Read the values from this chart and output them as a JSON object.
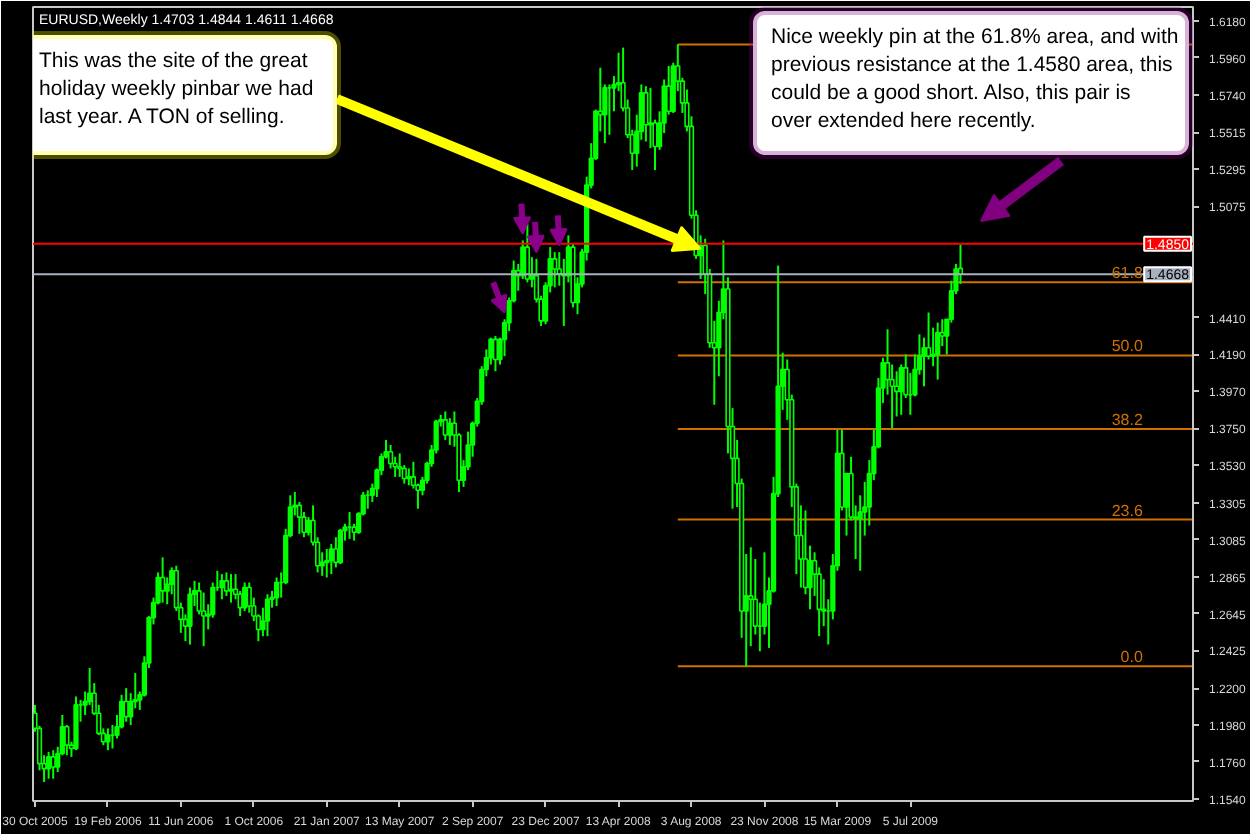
{
  "chart_data": {
    "type": "candlestick",
    "title": "EURUSD,Weekly  1.4703 1.4844 1.4611 1.4668",
    "color": "#00ff00",
    "x": [
      "2005-10-30",
      "2005-11-06",
      "2005-11-13",
      "2005-11-20",
      "2005-11-27",
      "2005-12-04",
      "2005-12-11",
      "2005-12-18",
      "2005-12-25",
      "2006-01-01",
      "2006-01-08",
      "2006-01-15",
      "2006-01-22",
      "2006-01-29",
      "2006-02-05",
      "2006-02-12",
      "2006-02-19",
      "2006-02-26",
      "2006-03-05",
      "2006-03-12",
      "2006-03-19",
      "2006-03-26",
      "2006-04-02",
      "2006-04-09",
      "2006-04-16",
      "2006-04-23",
      "2006-04-30",
      "2006-05-07",
      "2006-05-14",
      "2006-05-21",
      "2006-05-28",
      "2006-06-04",
      "2006-06-11",
      "2006-06-18",
      "2006-06-25",
      "2006-07-02",
      "2006-07-09",
      "2006-07-16",
      "2006-07-23",
      "2006-07-30",
      "2006-08-06",
      "2006-08-13",
      "2006-08-20",
      "2006-08-27",
      "2006-09-03",
      "2006-09-10",
      "2006-09-17",
      "2006-09-24",
      "2006-10-01",
      "2006-10-08",
      "2006-10-15",
      "2006-10-22",
      "2006-10-29",
      "2006-11-05",
      "2006-11-12",
      "2006-11-19",
      "2006-11-26",
      "2006-12-03",
      "2006-12-10",
      "2006-12-17",
      "2006-12-24",
      "2006-12-31",
      "2007-01-07",
      "2007-01-14",
      "2007-01-21",
      "2007-01-28",
      "2007-02-04",
      "2007-02-11",
      "2007-02-18",
      "2007-02-25",
      "2007-03-04",
      "2007-03-11",
      "2007-03-18",
      "2007-03-25",
      "2007-04-01",
      "2007-04-08",
      "2007-04-15",
      "2007-04-22",
      "2007-04-29",
      "2007-05-06",
      "2007-05-13",
      "2007-05-20",
      "2007-05-27",
      "2007-06-03",
      "2007-06-10",
      "2007-06-17",
      "2007-06-24",
      "2007-07-01",
      "2007-07-08",
      "2007-07-15",
      "2007-07-22",
      "2007-07-29",
      "2007-08-05",
      "2007-08-12",
      "2007-08-19",
      "2007-08-26",
      "2007-09-02",
      "2007-09-09",
      "2007-09-16",
      "2007-09-23",
      "2007-09-30",
      "2007-10-07",
      "2007-10-14",
      "2007-10-21",
      "2007-10-28",
      "2007-11-04",
      "2007-11-11",
      "2007-11-18",
      "2007-11-25",
      "2007-12-02",
      "2007-12-09",
      "2007-12-16",
      "2007-12-23",
      "2007-12-30",
      "2008-01-06",
      "2008-01-13",
      "2008-01-20",
      "2008-01-27",
      "2008-02-03",
      "2008-02-10",
      "2008-02-17",
      "2008-02-24",
      "2008-03-02",
      "2008-03-09",
      "2008-03-16",
      "2008-03-23",
      "2008-03-30",
      "2008-04-06",
      "2008-04-13",
      "2008-04-20",
      "2008-04-27",
      "2008-05-04",
      "2008-05-11",
      "2008-05-18",
      "2008-05-25",
      "2008-06-01",
      "2008-06-08",
      "2008-06-15",
      "2008-06-22",
      "2008-06-29",
      "2008-07-06",
      "2008-07-13",
      "2008-07-20",
      "2008-07-27",
      "2008-08-03",
      "2008-08-10",
      "2008-08-17",
      "2008-08-24",
      "2008-08-31",
      "2008-09-07",
      "2008-09-14",
      "2008-09-21",
      "2008-09-28",
      "2008-10-05",
      "2008-10-12",
      "2008-10-19",
      "2008-10-26",
      "2008-11-02",
      "2008-11-09",
      "2008-11-16",
      "2008-11-23",
      "2008-11-30",
      "2008-12-07",
      "2008-12-14",
      "2008-12-21",
      "2008-12-28",
      "2009-01-04",
      "2009-01-11",
      "2009-01-18",
      "2009-01-25",
      "2009-02-01",
      "2009-02-08",
      "2009-02-15",
      "2009-02-22",
      "2009-03-01",
      "2009-03-08",
      "2009-03-15",
      "2009-03-22",
      "2009-03-29",
      "2009-04-05",
      "2009-04-12",
      "2009-04-19",
      "2009-04-26",
      "2009-05-03",
      "2009-05-10",
      "2009-05-17",
      "2009-05-24",
      "2009-05-31",
      "2009-06-07",
      "2009-06-14",
      "2009-06-21",
      "2009-06-28",
      "2009-07-05",
      "2009-07-12",
      "2009-07-19",
      "2009-07-26",
      "2009-08-02",
      "2009-08-09",
      "2009-08-16",
      "2009-08-23",
      "2009-08-30",
      "2009-09-06",
      "2009-09-13",
      "2009-09-20"
    ],
    "ohlc": [
      [
        1.205,
        1.21,
        1.194,
        1.196
      ],
      [
        1.196,
        1.1975,
        1.171,
        1.175
      ],
      [
        1.175,
        1.18,
        1.164,
        1.172
      ],
      [
        1.172,
        1.182,
        1.166,
        1.179
      ],
      [
        1.179,
        1.183,
        1.166,
        1.173
      ],
      [
        1.173,
        1.185,
        1.17,
        1.181
      ],
      [
        1.181,
        1.204,
        1.18,
        1.197
      ],
      [
        1.197,
        1.198,
        1.18,
        1.186
      ],
      [
        1.186,
        1.188,
        1.179,
        1.184
      ],
      [
        1.184,
        1.215,
        1.183,
        1.21
      ],
      [
        1.21,
        1.213,
        1.2,
        1.21
      ],
      [
        1.21,
        1.218,
        1.204,
        1.212
      ],
      [
        1.212,
        1.232,
        1.21,
        1.217
      ],
      [
        1.217,
        1.223,
        1.204,
        1.205
      ],
      [
        1.205,
        1.21,
        1.192,
        1.193
      ],
      [
        1.193,
        1.196,
        1.186,
        1.188
      ],
      [
        1.188,
        1.196,
        1.183,
        1.192
      ],
      [
        1.192,
        1.198,
        1.184,
        1.192
      ],
      [
        1.192,
        1.204,
        1.19,
        1.197
      ],
      [
        1.197,
        1.216,
        1.196,
        1.212
      ],
      [
        1.212,
        1.22,
        1.2,
        1.203
      ],
      [
        1.203,
        1.217,
        1.198,
        1.212
      ],
      [
        1.212,
        1.229,
        1.208,
        1.213
      ],
      [
        1.213,
        1.218,
        1.207,
        1.216
      ],
      [
        1.216,
        1.239,
        1.215,
        1.235
      ],
      [
        1.235,
        1.263,
        1.232,
        1.262
      ],
      [
        1.262,
        1.274,
        1.258,
        1.271
      ],
      [
        1.271,
        1.289,
        1.27,
        1.286
      ],
      [
        1.286,
        1.298,
        1.271,
        1.278
      ],
      [
        1.278,
        1.286,
        1.27,
        1.282
      ],
      [
        1.282,
        1.292,
        1.276,
        1.29
      ],
      [
        1.29,
        1.293,
        1.266,
        1.268
      ],
      [
        1.268,
        1.271,
        1.253,
        1.261
      ],
      [
        1.261,
        1.264,
        1.248,
        1.257
      ],
      [
        1.257,
        1.28,
        1.246,
        1.276
      ],
      [
        1.276,
        1.284,
        1.269,
        1.278
      ],
      [
        1.278,
        1.283,
        1.264,
        1.266
      ],
      [
        1.266,
        1.277,
        1.245,
        1.263
      ],
      [
        1.263,
        1.27,
        1.255,
        1.264
      ],
      [
        1.264,
        1.283,
        1.262,
        1.28
      ],
      [
        1.28,
        1.29,
        1.278,
        1.28
      ],
      [
        1.28,
        1.288,
        1.273,
        1.284
      ],
      [
        1.284,
        1.289,
        1.275,
        1.278
      ],
      [
        1.278,
        1.288,
        1.271,
        1.279
      ],
      [
        1.279,
        1.288,
        1.273,
        1.276
      ],
      [
        1.276,
        1.278,
        1.263,
        1.268
      ],
      [
        1.268,
        1.283,
        1.266,
        1.28
      ],
      [
        1.28,
        1.283,
        1.265,
        1.269
      ],
      [
        1.269,
        1.274,
        1.26,
        1.263
      ],
      [
        1.263,
        1.264,
        1.248,
        1.255
      ],
      [
        1.255,
        1.268,
        1.251,
        1.26
      ],
      [
        1.26,
        1.276,
        1.251,
        1.273
      ],
      [
        1.273,
        1.278,
        1.268,
        1.274
      ],
      [
        1.274,
        1.286,
        1.269,
        1.283
      ],
      [
        1.283,
        1.289,
        1.274,
        1.283
      ],
      [
        1.283,
        1.315,
        1.282,
        1.311
      ],
      [
        1.311,
        1.335,
        1.31,
        1.328
      ],
      [
        1.328,
        1.337,
        1.323,
        1.329
      ],
      [
        1.329,
        1.331,
        1.312,
        1.322
      ],
      [
        1.322,
        1.325,
        1.31,
        1.313
      ],
      [
        1.313,
        1.322,
        1.311,
        1.32
      ],
      [
        1.32,
        1.329,
        1.305,
        1.307
      ],
      [
        1.307,
        1.31,
        1.289,
        1.293
      ],
      [
        1.293,
        1.301,
        1.287,
        1.295
      ],
      [
        1.295,
        1.303,
        1.286,
        1.296
      ],
      [
        1.296,
        1.306,
        1.288,
        1.303
      ],
      [
        1.303,
        1.31,
        1.292,
        1.295
      ],
      [
        1.295,
        1.315,
        1.294,
        1.314
      ],
      [
        1.314,
        1.318,
        1.308,
        1.316
      ],
      [
        1.316,
        1.325,
        1.309,
        1.316
      ],
      [
        1.316,
        1.318,
        1.308,
        1.313
      ],
      [
        1.313,
        1.325,
        1.312,
        1.324
      ],
      [
        1.324,
        1.337,
        1.323,
        1.335
      ],
      [
        1.335,
        1.338,
        1.327,
        1.335
      ],
      [
        1.335,
        1.342,
        1.331,
        1.339
      ],
      [
        1.339,
        1.351,
        1.334,
        1.35
      ],
      [
        1.35,
        1.36,
        1.347,
        1.358
      ],
      [
        1.358,
        1.368,
        1.357,
        1.361
      ],
      [
        1.361,
        1.365,
        1.351,
        1.354
      ],
      [
        1.354,
        1.358,
        1.346,
        1.352
      ],
      [
        1.352,
        1.36,
        1.346,
        1.351
      ],
      [
        1.351,
        1.353,
        1.342,
        1.345
      ],
      [
        1.345,
        1.351,
        1.341,
        1.346
      ],
      [
        1.346,
        1.355,
        1.339,
        1.341
      ],
      [
        1.341,
        1.342,
        1.327,
        1.338
      ],
      [
        1.338,
        1.346,
        1.335,
        1.344
      ],
      [
        1.344,
        1.355,
        1.342,
        1.354
      ],
      [
        1.354,
        1.365,
        1.352,
        1.362
      ],
      [
        1.362,
        1.38,
        1.36,
        1.379
      ],
      [
        1.379,
        1.383,
        1.376,
        1.38
      ],
      [
        1.38,
        1.385,
        1.368,
        1.371
      ],
      [
        1.371,
        1.381,
        1.365,
        1.378
      ],
      [
        1.378,
        1.385,
        1.364,
        1.371
      ],
      [
        1.371,
        1.372,
        1.337,
        1.344
      ],
      [
        1.344,
        1.356,
        1.34,
        1.352
      ],
      [
        1.352,
        1.373,
        1.35,
        1.365
      ],
      [
        1.365,
        1.379,
        1.358,
        1.378
      ],
      [
        1.378,
        1.393,
        1.376,
        1.391
      ],
      [
        1.391,
        1.412,
        1.389,
        1.41
      ],
      [
        1.41,
        1.422,
        1.406,
        1.417
      ],
      [
        1.417,
        1.429,
        1.413,
        1.428
      ],
      [
        1.428,
        1.43,
        1.409,
        1.416
      ],
      [
        1.416,
        1.429,
        1.413,
        1.428
      ],
      [
        1.428,
        1.44,
        1.418,
        1.438
      ],
      [
        1.438,
        1.453,
        1.433,
        1.451
      ],
      [
        1.451,
        1.475,
        1.45,
        1.469
      ],
      [
        1.469,
        1.473,
        1.457,
        1.466
      ],
      [
        1.466,
        1.487,
        1.464,
        1.483
      ],
      [
        1.483,
        1.497,
        1.462,
        1.464
      ],
      [
        1.464,
        1.477,
        1.459,
        1.466
      ],
      [
        1.466,
        1.476,
        1.45,
        1.452
      ],
      [
        1.452,
        1.454,
        1.436,
        1.439
      ],
      [
        1.439,
        1.462,
        1.437,
        1.46
      ],
      [
        1.46,
        1.483,
        1.456,
        1.476
      ],
      [
        1.476,
        1.48,
        1.459,
        1.47
      ],
      [
        1.47,
        1.48,
        1.46,
        1.467
      ],
      [
        1.467,
        1.476,
        1.436,
        1.466
      ],
      [
        1.466,
        1.49,
        1.462,
        1.483
      ],
      [
        1.483,
        1.485,
        1.447,
        1.45
      ],
      [
        1.45,
        1.465,
        1.443,
        1.461
      ],
      [
        1.461,
        1.482,
        1.459,
        1.48
      ],
      [
        1.48,
        1.525,
        1.475,
        1.52
      ],
      [
        1.52,
        1.545,
        1.518,
        1.536
      ],
      [
        1.536,
        1.565,
        1.535,
        1.564
      ],
      [
        1.564,
        1.59,
        1.552,
        1.562
      ],
      [
        1.562,
        1.58,
        1.545,
        1.578
      ],
      [
        1.578,
        1.58,
        1.55,
        1.578
      ],
      [
        1.578,
        1.585,
        1.564,
        1.58
      ],
      [
        1.58,
        1.599,
        1.576,
        1.581
      ],
      [
        1.581,
        1.602,
        1.564,
        1.566
      ],
      [
        1.566,
        1.571,
        1.548,
        1.55
      ],
      [
        1.55,
        1.553,
        1.529,
        1.539
      ],
      [
        1.539,
        1.562,
        1.531,
        1.552
      ],
      [
        1.552,
        1.58,
        1.547,
        1.575
      ],
      [
        1.575,
        1.579,
        1.546,
        1.556
      ],
      [
        1.556,
        1.578,
        1.542,
        1.557
      ],
      [
        1.557,
        1.559,
        1.529,
        1.543
      ],
      [
        1.543,
        1.564,
        1.541,
        1.557
      ],
      [
        1.557,
        1.583,
        1.551,
        1.579
      ],
      [
        1.579,
        1.591,
        1.562,
        1.564
      ],
      [
        1.564,
        1.593,
        1.563,
        1.591
      ],
      [
        1.591,
        1.604,
        1.576,
        1.582
      ],
      [
        1.582,
        1.584,
        1.563,
        1.569
      ],
      [
        1.569,
        1.577,
        1.552,
        1.555
      ],
      [
        1.555,
        1.561,
        1.5,
        1.502
      ],
      [
        1.502,
        1.505,
        1.476,
        1.478
      ],
      [
        1.478,
        1.49,
        1.464,
        1.484
      ],
      [
        1.484,
        1.488,
        1.455,
        1.467
      ],
      [
        1.467,
        1.47,
        1.423,
        1.426
      ],
      [
        1.426,
        1.439,
        1.389,
        1.423
      ],
      [
        1.423,
        1.451,
        1.406,
        1.444
      ],
      [
        1.444,
        1.487,
        1.44,
        1.458
      ],
      [
        1.458,
        1.465,
        1.36,
        1.376
      ],
      [
        1.376,
        1.387,
        1.327,
        1.357
      ],
      [
        1.357,
        1.368,
        1.328,
        1.342
      ],
      [
        1.342,
        1.345,
        1.25,
        1.266
      ],
      [
        1.266,
        1.3,
        1.233,
        1.275
      ],
      [
        1.275,
        1.304,
        1.245,
        1.273
      ],
      [
        1.273,
        1.297,
        1.252,
        1.257
      ],
      [
        1.257,
        1.271,
        1.242,
        1.257
      ],
      [
        1.257,
        1.301,
        1.252,
        1.27
      ],
      [
        1.27,
        1.286,
        1.244,
        1.278
      ],
      [
        1.278,
        1.346,
        1.277,
        1.336
      ],
      [
        1.336,
        1.472,
        1.334,
        1.4
      ],
      [
        1.4,
        1.42,
        1.386,
        1.41
      ],
      [
        1.41,
        1.416,
        1.38,
        1.392
      ],
      [
        1.392,
        1.395,
        1.328,
        1.34
      ],
      [
        1.34,
        1.342,
        1.288,
        1.311
      ],
      [
        1.311,
        1.329,
        1.28,
        1.297
      ],
      [
        1.297,
        1.326,
        1.276,
        1.28
      ],
      [
        1.28,
        1.305,
        1.267,
        1.296
      ],
      [
        1.296,
        1.301,
        1.275,
        1.288
      ],
      [
        1.288,
        1.292,
        1.251,
        1.267
      ],
      [
        1.267,
        1.285,
        1.257,
        1.266
      ],
      [
        1.266,
        1.273,
        1.246,
        1.266
      ],
      [
        1.266,
        1.3,
        1.261,
        1.293
      ],
      [
        1.293,
        1.374,
        1.29,
        1.36
      ],
      [
        1.36,
        1.374,
        1.326,
        1.328
      ],
      [
        1.328,
        1.348,
        1.311,
        1.348
      ],
      [
        1.348,
        1.358,
        1.32,
        1.322
      ],
      [
        1.322,
        1.329,
        1.297,
        1.321
      ],
      [
        1.321,
        1.335,
        1.29,
        1.325
      ],
      [
        1.325,
        1.343,
        1.311,
        1.328
      ],
      [
        1.328,
        1.356,
        1.317,
        1.348
      ],
      [
        1.348,
        1.374,
        1.344,
        1.364
      ],
      [
        1.364,
        1.405,
        1.363,
        1.399
      ],
      [
        1.399,
        1.417,
        1.39,
        1.414
      ],
      [
        1.414,
        1.434,
        1.395,
        1.404
      ],
      [
        1.404,
        1.413,
        1.375,
        1.4
      ],
      [
        1.4,
        1.409,
        1.382,
        1.397
      ],
      [
        1.397,
        1.413,
        1.383,
        1.411
      ],
      [
        1.411,
        1.419,
        1.393,
        1.395
      ],
      [
        1.395,
        1.408,
        1.383,
        1.395
      ],
      [
        1.395,
        1.419,
        1.394,
        1.41
      ],
      [
        1.41,
        1.431,
        1.407,
        1.418
      ],
      [
        1.418,
        1.429,
        1.4,
        1.423
      ],
      [
        1.423,
        1.444,
        1.416,
        1.418
      ],
      [
        1.418,
        1.435,
        1.412,
        1.419
      ],
      [
        1.419,
        1.438,
        1.404,
        1.432
      ],
      [
        1.432,
        1.44,
        1.424,
        1.43
      ],
      [
        1.43,
        1.44,
        1.419,
        1.44
      ],
      [
        1.44,
        1.463,
        1.438,
        1.457
      ],
      [
        1.457,
        1.473,
        1.455,
        1.47
      ],
      [
        1.4703,
        1.4844,
        1.4611,
        1.4668
      ]
    ],
    "xlim": [
      "2005-10-27",
      "2010-09-12"
    ],
    "xticks": [
      {
        "value": "2005-10-30",
        "label": "30 Oct 2005"
      },
      {
        "value": "2006-02-19",
        "label": "19 Feb 2006"
      },
      {
        "value": "2006-06-11",
        "label": "11 Jun 2006"
      },
      {
        "value": "2006-10-01",
        "label": "1 Oct 2006"
      },
      {
        "value": "2007-01-21",
        "label": "21 Jan 2007"
      },
      {
        "value": "2007-05-13",
        "label": "13 May 2007"
      },
      {
        "value": "2007-09-02",
        "label": "2 Sep 2007"
      },
      {
        "value": "2007-12-23",
        "label": "23 Dec 2007"
      },
      {
        "value": "2008-04-13",
        "label": "13 Apr 2008"
      },
      {
        "value": "2008-08-03",
        "label": "3 Aug 2008"
      },
      {
        "value": "2008-11-23",
        "label": "23 Nov 2008"
      },
      {
        "value": "2009-03-15",
        "label": "15 Mar 2009"
      },
      {
        "value": "2009-07-05",
        "label": "5 Jul 2009"
      }
    ],
    "ylim": [
      1.1527,
      1.6262
    ],
    "yticks": [
      {
        "value": 1.618,
        "label": "1.6180"
      },
      {
        "value": 1.596,
        "label": "1.5960"
      },
      {
        "value": 1.574,
        "label": "1.5740"
      },
      {
        "value": 1.5515,
        "label": "1.5515"
      },
      {
        "value": 1.5295,
        "label": "1.5295"
      },
      {
        "value": 1.5075,
        "label": "1.5075"
      },
      {
        "value": 1.441,
        "label": "1.4410"
      },
      {
        "value": 1.419,
        "label": "1.4190"
      },
      {
        "value": 1.397,
        "label": "1.3970"
      },
      {
        "value": 1.375,
        "label": "1.3750"
      },
      {
        "value": 1.353,
        "label": "1.3530"
      },
      {
        "value": 1.3305,
        "label": "1.3305"
      },
      {
        "value": 1.3085,
        "label": "1.3085"
      },
      {
        "value": 1.2865,
        "label": "1.2865"
      },
      {
        "value": 1.2645,
        "label": "1.2645"
      },
      {
        "value": 1.2425,
        "label": "1.2425"
      },
      {
        "value": 1.22,
        "label": "1.2200"
      },
      {
        "value": 1.198,
        "label": "1.1980"
      },
      {
        "value": 1.176,
        "label": "1.1760"
      },
      {
        "value": 1.154,
        "label": "1.1540"
      }
    ],
    "ref_lines": [
      {
        "axis": "y",
        "value": 1.6038,
        "label": null,
        "color": "#d07000"
      },
      {
        "axis": "y",
        "value": 1.4621,
        "label": null,
        "color": "#d07000"
      },
      {
        "axis": "y",
        "value": 1.4184,
        "label": null,
        "color": "#d07000"
      },
      {
        "axis": "y",
        "value": 1.3746,
        "label": null,
        "color": "#d07000"
      },
      {
        "axis": "y",
        "value": 1.3205,
        "label": null,
        "color": "#d07000"
      },
      {
        "axis": "y",
        "value": 1.233,
        "label": null,
        "color": "#d07000"
      },
      {
        "axis": "y",
        "value": 1.485,
        "label": "1.4850",
        "color": "#ff0000"
      },
      {
        "axis": "y",
        "value": 1.4668,
        "label": "1.4668",
        "color": "#a8b0c0"
      }
    ],
    "annotations": [
      {
        "text": "This was the site of the great holiday weekly pinbar we had last year. A TON of selling.",
        "x": "2008-08-17",
        "y": 1.482
      },
      "Nice weekly pin at the 61.8% area, and with previous resistance at the 1.4580 area, this could be a good short. Also, this pair is over extended  here recently.",
      {
        "text": "61.8",
        "x": "2010-06-27",
        "y": 1.4621
      },
      {
        "text": "50.0",
        "x": "2010-06-27",
        "y": 1.4184
      },
      {
        "text": "38.2",
        "x": "2010-06-27",
        "y": 1.3746
      },
      {
        "text": "23.6",
        "x": "2010-06-27",
        "y": 1.3205
      },
      {
        "text": "0.0",
        "x": "2010-06-27",
        "y": 1.233
      }
    ]
  }
}
